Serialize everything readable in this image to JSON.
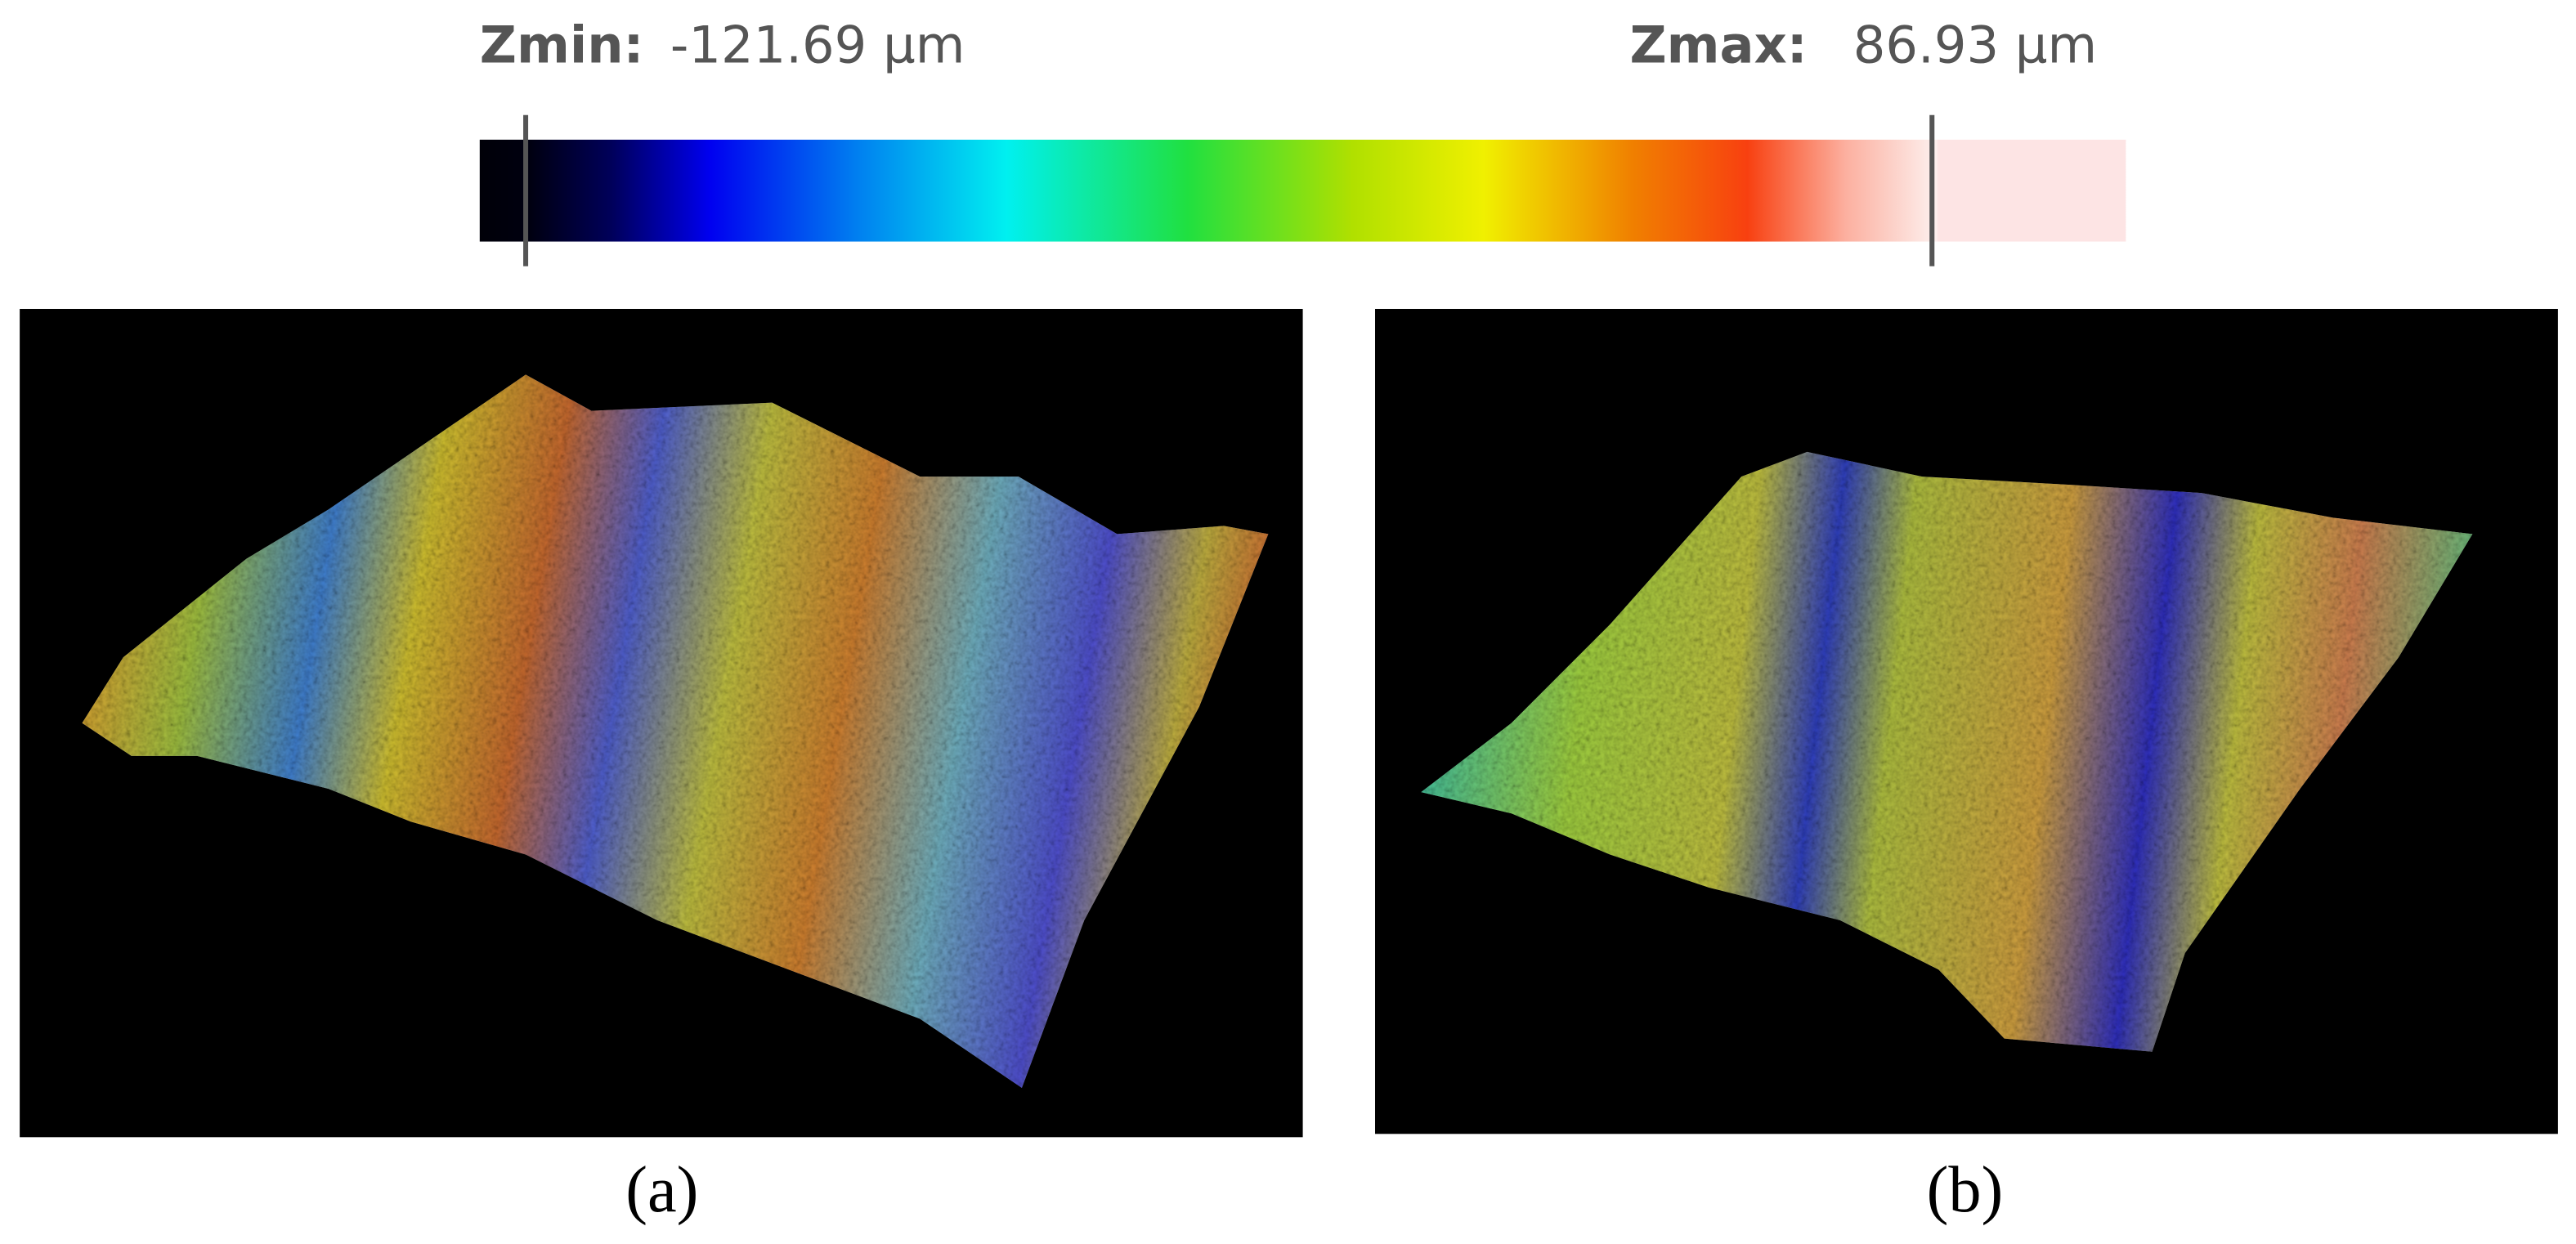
{
  "colorbar": {
    "zmin_label": "Zmin:",
    "zmin": "-121.69 µm",
    "zmax_label": "Zmax:",
    "zmax": "86.93 µm"
  },
  "panels": [
    {
      "caption": "(a)"
    },
    {
      "caption": "(b)"
    }
  ]
}
